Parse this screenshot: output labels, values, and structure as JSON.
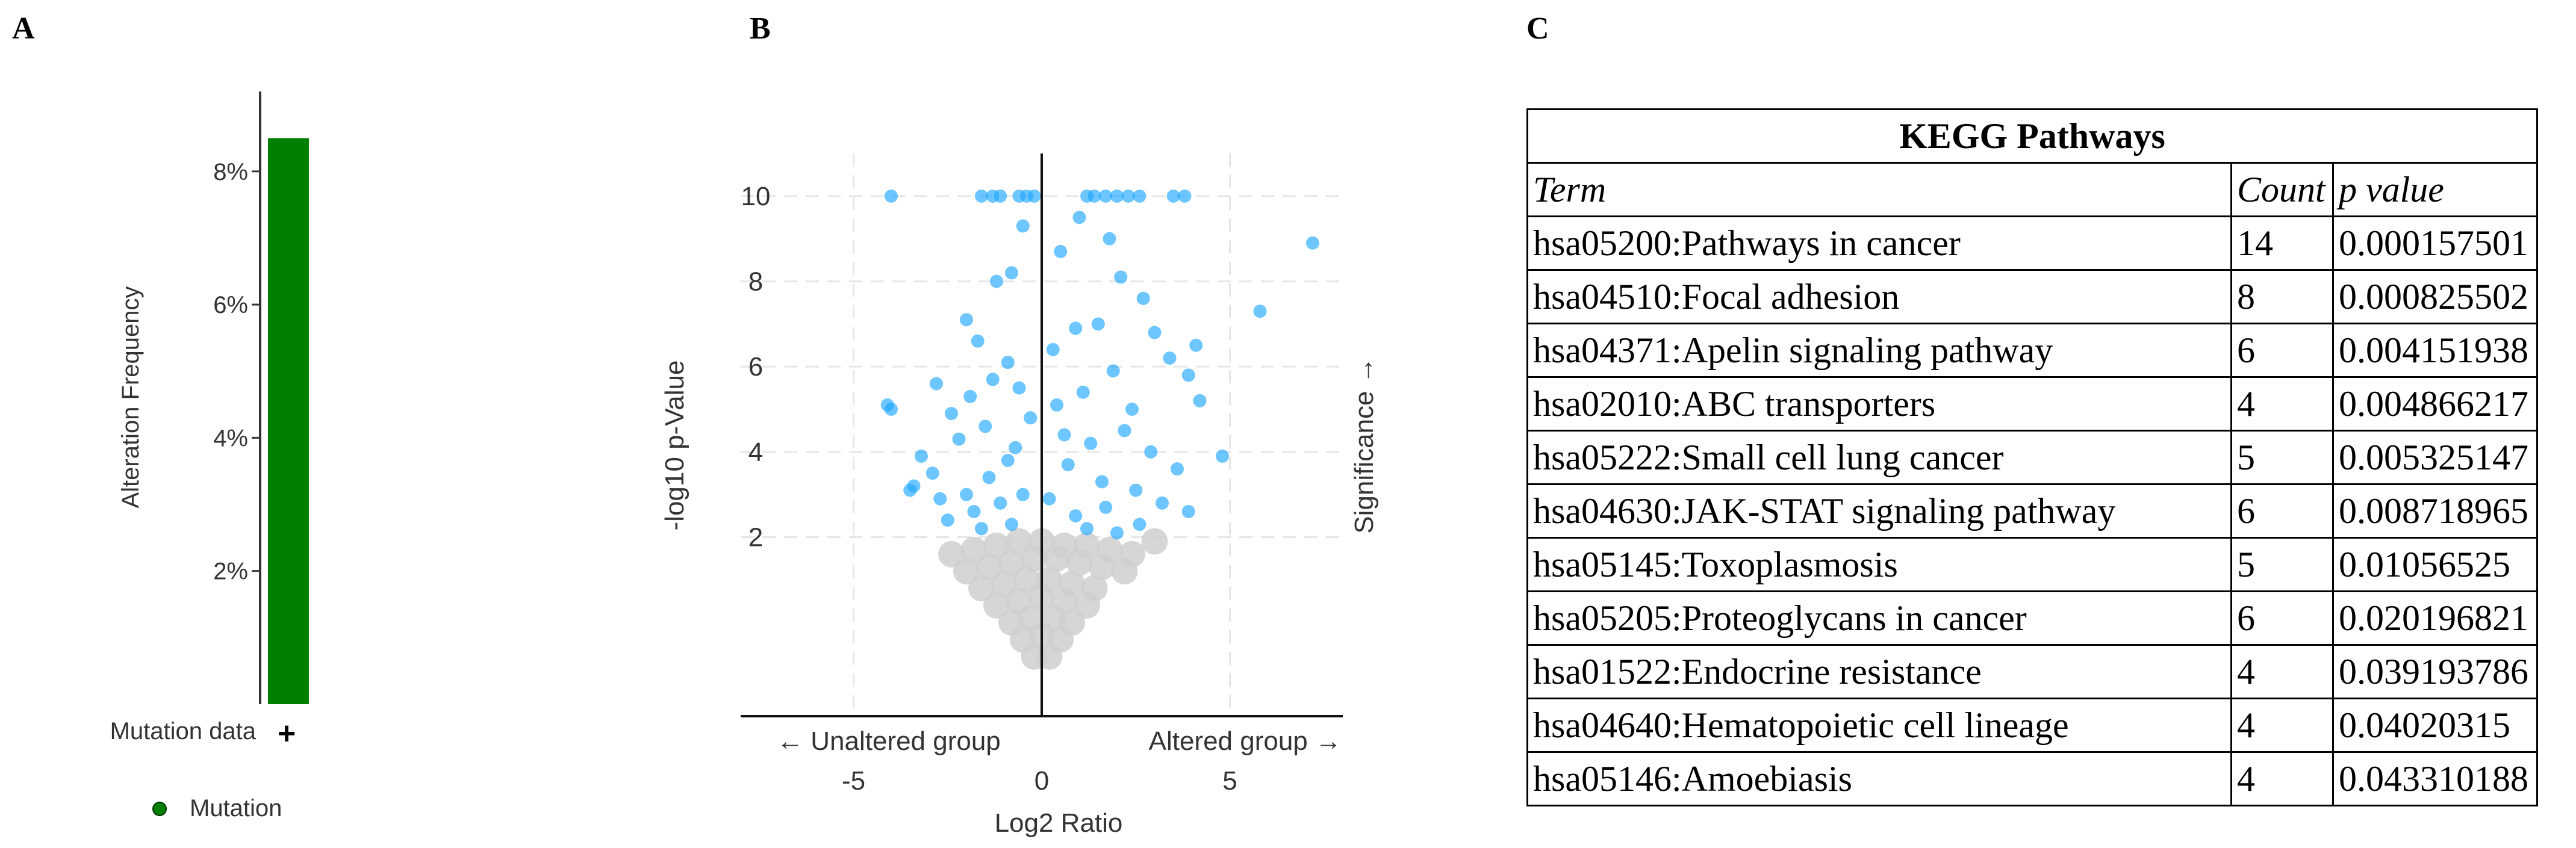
{
  "panels": {
    "a": "A",
    "b": "B",
    "c": "C"
  },
  "chart_data": [
    {
      "type": "bar",
      "panel": "A",
      "ylabel": "Alteration Frequency",
      "yticks": [
        "2%",
        "4%",
        "6%",
        "8%"
      ],
      "ylim": [
        0,
        9.2
      ],
      "categories": [
        "Mutation data"
      ],
      "values": [
        8.5
      ],
      "row_label": "Mutation data",
      "row_icon": "plus-icon",
      "legend": [
        {
          "name": "Mutation",
          "color": "#008000"
        }
      ],
      "bar_color": "#008000"
    },
    {
      "type": "scatter",
      "panel": "B",
      "xlabel": "Log2 Ratio",
      "ylabel": "-log10 p-Value",
      "right_label": "Significance →",
      "left_group_label": "← Unaltered group",
      "right_group_label": "Altered group →",
      "xlim": [
        -8,
        8
      ],
      "ylim": [
        -2.2,
        11
      ],
      "xticks": [
        -5,
        0,
        5
      ],
      "xtick_labels": [
        "-5",
        "0",
        "5"
      ],
      "yticks": [
        2,
        4,
        6,
        8,
        10
      ],
      "ytick_labels": [
        "2",
        "4",
        "6",
        "8",
        "10"
      ],
      "significance_threshold": 2,
      "colors": {
        "significant": "#1ea8ff",
        "not_significant": "#cfcfcf"
      },
      "series": [
        {
          "name": "significant",
          "points": [
            [
              -4,
              10
            ],
            [
              -1.6,
              10
            ],
            [
              -1.3,
              10
            ],
            [
              -1.1,
              10
            ],
            [
              -0.6,
              10
            ],
            [
              -0.4,
              10
            ],
            [
              -0.2,
              10
            ],
            [
              1.2,
              10
            ],
            [
              1.4,
              10
            ],
            [
              1.7,
              10
            ],
            [
              2.0,
              10
            ],
            [
              2.3,
              10
            ],
            [
              2.6,
              10
            ],
            [
              3.5,
              10
            ],
            [
              3.8,
              10
            ],
            [
              7.2,
              8.9
            ],
            [
              5.8,
              7.3
            ],
            [
              -4.1,
              5.1
            ],
            [
              -4.0,
              5.0
            ],
            [
              4.8,
              3.9
            ],
            [
              -3.5,
              3.1
            ],
            [
              -1.2,
              8.0
            ],
            [
              -0.8,
              8.2
            ],
            [
              -0.5,
              9.3
            ],
            [
              0.5,
              8.7
            ],
            [
              1.0,
              9.5
            ],
            [
              1.8,
              9.0
            ],
            [
              2.1,
              8.1
            ],
            [
              2.7,
              7.6
            ],
            [
              -2.0,
              7.1
            ],
            [
              -1.7,
              6.6
            ],
            [
              -0.9,
              6.1
            ],
            [
              0.3,
              6.4
            ],
            [
              0.9,
              6.9
            ],
            [
              1.5,
              7.0
            ],
            [
              3.0,
              6.8
            ],
            [
              3.4,
              6.2
            ],
            [
              4.1,
              6.5
            ],
            [
              3.9,
              5.8
            ],
            [
              4.2,
              5.2
            ],
            [
              -2.8,
              5.6
            ],
            [
              -2.4,
              4.9
            ],
            [
              -1.9,
              5.3
            ],
            [
              -1.3,
              5.7
            ],
            [
              -0.6,
              5.5
            ],
            [
              -0.3,
              4.8
            ],
            [
              0.4,
              5.1
            ],
            [
              1.1,
              5.4
            ],
            [
              1.9,
              5.9
            ],
            [
              2.4,
              5.0
            ],
            [
              -3.2,
              3.9
            ],
            [
              -2.9,
              3.5
            ],
            [
              -2.2,
              4.3
            ],
            [
              -1.5,
              4.6
            ],
            [
              -0.7,
              4.1
            ],
            [
              0.6,
              4.4
            ],
            [
              1.3,
              4.2
            ],
            [
              2.2,
              4.5
            ],
            [
              2.9,
              4.0
            ],
            [
              3.6,
              3.6
            ],
            [
              -3.4,
              3.2
            ],
            [
              -2.7,
              2.9
            ],
            [
              -2.0,
              3.0
            ],
            [
              -1.4,
              3.4
            ],
            [
              -0.9,
              3.8
            ],
            [
              0.7,
              3.7
            ],
            [
              1.6,
              3.3
            ],
            [
              2.5,
              3.1
            ],
            [
              3.2,
              2.8
            ],
            [
              3.9,
              2.6
            ],
            [
              -2.5,
              2.4
            ],
            [
              -1.8,
              2.6
            ],
            [
              -1.1,
              2.8
            ],
            [
              -0.5,
              3.0
            ],
            [
              0.2,
              2.9
            ],
            [
              0.9,
              2.5
            ],
            [
              1.7,
              2.7
            ],
            [
              2.6,
              2.3
            ],
            [
              -1.6,
              2.2
            ],
            [
              -0.8,
              2.3
            ],
            [
              1.2,
              2.2
            ],
            [
              2.0,
              2.1
            ]
          ]
        },
        {
          "name": "not_significant",
          "points": [
            [
              -2.4,
              1.6
            ],
            [
              -1.8,
              1.7
            ],
            [
              -1.2,
              1.8
            ],
            [
              -0.6,
              1.9
            ],
            [
              0.0,
              1.9
            ],
            [
              0.6,
              1.8
            ],
            [
              1.2,
              1.8
            ],
            [
              1.8,
              1.7
            ],
            [
              2.4,
              1.6
            ],
            [
              3.0,
              1.9
            ],
            [
              -2.0,
              1.2
            ],
            [
              -1.4,
              1.3
            ],
            [
              -0.8,
              1.4
            ],
            [
              -0.2,
              1.5
            ],
            [
              0.4,
              1.5
            ],
            [
              1.0,
              1.4
            ],
            [
              1.6,
              1.3
            ],
            [
              2.2,
              1.2
            ],
            [
              -1.6,
              0.8
            ],
            [
              -1.0,
              0.9
            ],
            [
              -0.4,
              1.0
            ],
            [
              0.2,
              1.0
            ],
            [
              0.8,
              0.9
            ],
            [
              1.4,
              0.8
            ],
            [
              -1.2,
              0.4
            ],
            [
              -0.6,
              0.5
            ],
            [
              0.0,
              0.6
            ],
            [
              0.6,
              0.5
            ],
            [
              1.2,
              0.4
            ],
            [
              -0.8,
              0.0
            ],
            [
              -0.3,
              0.1
            ],
            [
              0.3,
              0.1
            ],
            [
              0.8,
              0.0
            ],
            [
              -0.5,
              -0.4
            ],
            [
              0.0,
              -0.3
            ],
            [
              0.5,
              -0.4
            ],
            [
              -0.2,
              -0.8
            ],
            [
              0.2,
              -0.8
            ]
          ]
        }
      ]
    },
    {
      "type": "table",
      "panel": "C",
      "title": "KEGG Pathways",
      "columns": [
        "Term",
        "Count",
        "p value"
      ],
      "rows": [
        [
          "hsa05200:Pathways in cancer",
          "14",
          "0.000157501"
        ],
        [
          "hsa04510:Focal adhesion",
          "8",
          "0.000825502"
        ],
        [
          "hsa04371:Apelin signaling pathway",
          "6",
          "0.004151938"
        ],
        [
          "hsa02010:ABC transporters",
          "4",
          "0.004866217"
        ],
        [
          "hsa05222:Small cell lung cancer",
          "5",
          "0.005325147"
        ],
        [
          "hsa04630:JAK-STAT signaling pathway",
          "6",
          "0.008718965"
        ],
        [
          "hsa05145:Toxoplasmosis",
          "5",
          "0.01056525"
        ],
        [
          "hsa05205:Proteoglycans in cancer",
          "6",
          "0.020196821"
        ],
        [
          "hsa01522:Endocrine resistance",
          "4",
          "0.039193786"
        ],
        [
          "hsa04640:Hematopoietic cell lineage",
          "4",
          "0.04020315"
        ],
        [
          "hsa05146:Amoebiasis",
          "4",
          "0.043310188"
        ]
      ]
    }
  ]
}
